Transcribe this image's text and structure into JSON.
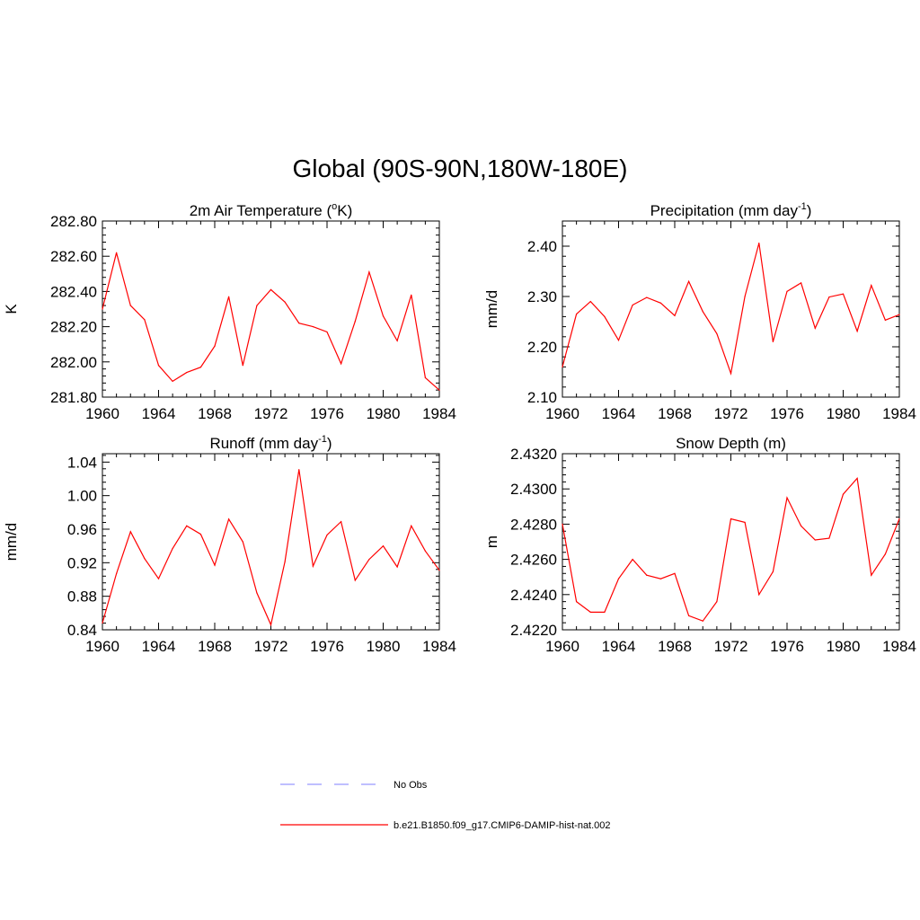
{
  "title": "Global (90S-90N,180W-180E)",
  "colors": {
    "model_line": "#ff0000",
    "obs_line": "#9999ff",
    "axis": "#000000"
  },
  "legend": [
    {
      "label": "No Obs",
      "style": "dashed",
      "color": "#9999ff"
    },
    {
      "label": "b.e21.B1850.f09_g17.CMIP6-DAMIP-hist-nat.002",
      "style": "solid",
      "color": "#ff0000"
    }
  ],
  "chart_data": [
    {
      "type": "line",
      "title": "2m Air Temperature (",
      "title_sup": "o",
      "title_tail": "K)",
      "ylabel": "K",
      "xlim": [
        1960,
        1984
      ],
      "ylim": [
        281.8,
        282.8
      ],
      "x_ticks": [
        "1960",
        "1964",
        "1968",
        "1972",
        "1976",
        "1980",
        "1984"
      ],
      "y_ticks": [
        "281.80",
        "282.00",
        "282.20",
        "282.40",
        "282.60",
        "282.80"
      ],
      "x": [
        1960,
        1961,
        1962,
        1963,
        1964,
        1965,
        1966,
        1967,
        1968,
        1969,
        1970,
        1971,
        1972,
        1973,
        1974,
        1975,
        1976,
        1977,
        1978,
        1979,
        1980,
        1981,
        1982,
        1983,
        1984
      ],
      "series": [
        {
          "values": [
            282.3,
            282.62,
            282.32,
            282.24,
            281.98,
            281.89,
            281.94,
            281.97,
            282.09,
            282.37,
            281.98,
            282.32,
            282.41,
            282.34,
            282.22,
            282.2,
            282.17,
            281.99,
            282.23,
            282.51,
            282.26,
            282.12,
            282.38,
            281.91,
            281.84
          ]
        }
      ]
    },
    {
      "type": "line",
      "title": "Precipitation (mm day",
      "title_sup": "-1",
      "title_tail": ")",
      "ylabel": "mm/d",
      "xlim": [
        1960,
        1984
      ],
      "ylim": [
        2.1,
        2.45
      ],
      "x_ticks": [
        "1960",
        "1964",
        "1968",
        "1972",
        "1976",
        "1980",
        "1984"
      ],
      "y_ticks": [
        "2.10",
        "2.20",
        "2.30",
        "2.40"
      ],
      "x": [
        1960,
        1961,
        1962,
        1963,
        1964,
        1965,
        1966,
        1967,
        1968,
        1969,
        1970,
        1971,
        1972,
        1973,
        1974,
        1975,
        1976,
        1977,
        1978,
        1979,
        1980,
        1981,
        1982,
        1983,
        1984
      ],
      "series": [
        {
          "values": [
            2.16,
            2.265,
            2.29,
            2.26,
            2.213,
            2.283,
            2.298,
            2.287,
            2.262,
            2.33,
            2.27,
            2.226,
            2.147,
            2.3,
            2.406,
            2.21,
            2.31,
            2.327,
            2.237,
            2.299,
            2.305,
            2.231,
            2.322,
            2.253,
            2.264
          ]
        }
      ]
    },
    {
      "type": "line",
      "title": "Runoff (mm day",
      "title_sup": "-1",
      "title_tail": ")",
      "ylabel": "mm/d",
      "xlim": [
        1960,
        1984
      ],
      "ylim": [
        0.84,
        1.05
      ],
      "x_ticks": [
        "1960",
        "1964",
        "1968",
        "1972",
        "1976",
        "1980",
        "1984"
      ],
      "y_ticks": [
        "0.84",
        "0.88",
        "0.92",
        "0.96",
        "1.00",
        "1.04"
      ],
      "x": [
        1960,
        1961,
        1962,
        1963,
        1964,
        1965,
        1966,
        1967,
        1968,
        1969,
        1970,
        1971,
        1972,
        1973,
        1974,
        1975,
        1976,
        1977,
        1978,
        1979,
        1980,
        1981,
        1982,
        1983,
        1984
      ],
      "series": [
        {
          "values": [
            0.848,
            0.907,
            0.957,
            0.925,
            0.901,
            0.937,
            0.964,
            0.954,
            0.917,
            0.972,
            0.945,
            0.884,
            0.846,
            0.921,
            1.031,
            0.916,
            0.953,
            0.969,
            0.899,
            0.924,
            0.94,
            0.915,
            0.964,
            0.934,
            0.911
          ]
        }
      ]
    },
    {
      "type": "line",
      "title": "Snow Depth (m)",
      "title_sup": "",
      "title_tail": "",
      "ylabel": "m",
      "xlim": [
        1960,
        1984
      ],
      "ylim": [
        2.422,
        2.432
      ],
      "x_ticks": [
        "1960",
        "1964",
        "1968",
        "1972",
        "1976",
        "1980",
        "1984"
      ],
      "y_ticks": [
        "2.4220",
        "2.4240",
        "2.4260",
        "2.4280",
        "2.4300",
        "2.4320"
      ],
      "x": [
        1960,
        1961,
        1962,
        1963,
        1964,
        1965,
        1966,
        1967,
        1968,
        1969,
        1970,
        1971,
        1972,
        1973,
        1974,
        1975,
        1976,
        1977,
        1978,
        1979,
        1980,
        1981,
        1982,
        1983,
        1984
      ],
      "series": [
        {
          "values": [
            2.428,
            2.4236,
            2.423,
            2.423,
            2.4249,
            2.426,
            2.4251,
            2.4249,
            2.4252,
            2.4228,
            2.4225,
            2.4236,
            2.4283,
            2.4281,
            2.424,
            2.4253,
            2.4295,
            2.4279,
            2.4271,
            2.4272,
            2.4297,
            2.4306,
            2.4251,
            2.4263,
            2.4283
          ]
        }
      ]
    }
  ]
}
